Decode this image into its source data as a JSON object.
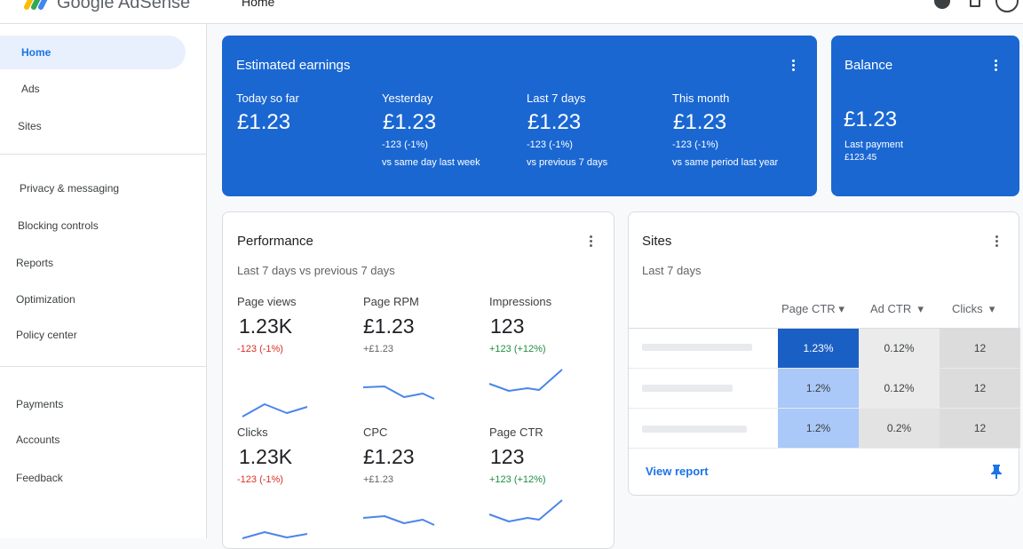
{
  "header": {
    "brand": "Google AdSense",
    "page": "Home"
  },
  "nav": {
    "items": [
      "Home",
      "Ads",
      "Sites",
      "Privacy & messaging",
      "Blocking controls",
      "Reports",
      "Optimization",
      "Policy center",
      "Payments",
      "Accounts",
      "Feedback"
    ]
  },
  "earnings": {
    "title": "Estimated earnings",
    "periods": [
      {
        "label": "Today so far",
        "amount": "£1.23"
      },
      {
        "label": "Yesterday",
        "amount": "£1.23",
        "change": "-123 (-1%)",
        "note": "vs same day last week"
      },
      {
        "label": "Last 7 days",
        "amount": "£1.23",
        "change": "-123 (-1%)",
        "note": "vs previous 7 days"
      },
      {
        "label": "This month",
        "amount": "£1.23",
        "change": "-123 (-1%)",
        "note": "vs same period last year"
      }
    ]
  },
  "balance": {
    "title": "Balance",
    "amount": "£1.23",
    "note": "Last payment",
    "last_payment": "£123.45"
  },
  "performance": {
    "title": "Performance",
    "subtitle": "Last 7 days vs previous 7 days",
    "metrics": [
      {
        "label": "Page views",
        "value": "1.23K",
        "change": "-123 (-1%)"
      },
      {
        "label": "Page RPM",
        "value": "£1.23",
        "change": "+£1.23"
      },
      {
        "label": "Impressions",
        "value": "123",
        "change": "+123 (+12%)"
      },
      {
        "label": "Clicks",
        "value": "1.23K",
        "change": "-123 (-1%)"
      },
      {
        "label": "CPC",
        "value": "£1.23",
        "change": "+£1.23"
      },
      {
        "label": "Page CTR",
        "value": "123",
        "change": "+123 (+12%)"
      }
    ]
  },
  "sites": {
    "title": "Sites",
    "subtitle": "Last 7 days",
    "columns": [
      "Page CTR",
      "Ad CTR",
      "Clicks"
    ],
    "rows": [
      [
        "1.23%",
        "0.12%",
        "12"
      ],
      [
        "1.2%",
        "0.12%",
        "12"
      ],
      [
        "1.2%",
        "0.2%",
        "12"
      ]
    ],
    "link": "View report"
  }
}
